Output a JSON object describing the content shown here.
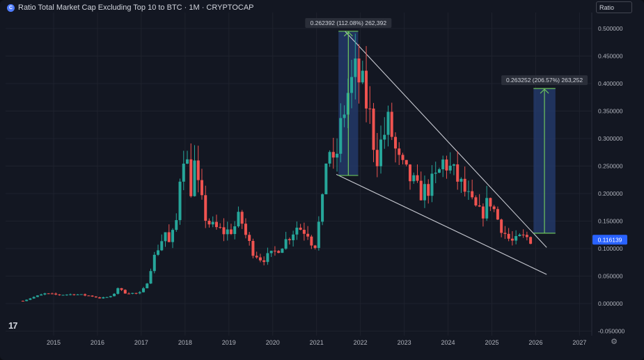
{
  "header": {
    "title": "Ratio Total Market Cap Excluding Top 10 to BTC · 1M · CRYPTOCAP",
    "icon": "cryptocap-icon"
  },
  "toolbar": {
    "ratio_label": "Ratio"
  },
  "logo": {
    "text": "17"
  },
  "settings": {
    "icon": "gear-icon",
    "glyph": "⚙"
  },
  "colors": {
    "up": "#26a69a",
    "down": "#ef5350",
    "grid": "#1e222d",
    "box": "#263e72",
    "arrow": "#6ec55d",
    "price": "#2962ff"
  },
  "chart_data": {
    "type": "candlestick",
    "title": "Ratio Total Market Cap Excluding Top 10 to BTC · 1M · CRYPTOCAP",
    "xlabel": "",
    "ylabel": "",
    "ylim": [
      -0.05,
      0.52
    ],
    "y_ticks": [
      0.5,
      0.45,
      0.4,
      0.35,
      0.3,
      0.25,
      0.2,
      0.15,
      0.1,
      0.05,
      0.0,
      -0.05
    ],
    "y_tick_labels": [
      "0.500000",
      "0.450000",
      "0.400000",
      "0.350000",
      "0.300000",
      "0.250000",
      "0.200000",
      "0.150000",
      "0.100000",
      "0.050000",
      "0.000000",
      "-0.050000"
    ],
    "x_ticks": [
      2015,
      2016,
      2017,
      2018,
      2019,
      2020,
      2021,
      2022,
      2023,
      2024,
      2025,
      2026,
      2027
    ],
    "x_tick_labels": [
      "2015",
      "2016",
      "2017",
      "2018",
      "2019",
      "2020",
      "2021",
      "2022",
      "2023",
      "2024",
      "2025",
      "2026",
      "2027"
    ],
    "grid": true,
    "last_price": {
      "value": 0.116139,
      "label": "0.116139"
    },
    "close_anchors": [
      [
        2014.3,
        0.005
      ],
      [
        2014.55,
        0.012
      ],
      [
        2014.8,
        0.018
      ],
      [
        2015.1,
        0.016
      ],
      [
        2015.5,
        0.017
      ],
      [
        2015.85,
        0.014
      ],
      [
        2016.05,
        0.01
      ],
      [
        2016.35,
        0.013
      ],
      [
        2016.45,
        0.03
      ],
      [
        2016.6,
        0.02
      ],
      [
        2016.95,
        0.018
      ],
      [
        2017.1,
        0.03
      ],
      [
        2017.25,
        0.075
      ],
      [
        2017.4,
        0.105
      ],
      [
        2017.55,
        0.13
      ],
      [
        2017.65,
        0.105
      ],
      [
        2017.8,
        0.15
      ],
      [
        2017.9,
        0.25
      ],
      [
        2018.0,
        0.29
      ],
      [
        2018.12,
        0.2
      ],
      [
        2018.2,
        0.26
      ],
      [
        2018.3,
        0.21
      ],
      [
        2018.45,
        0.16
      ],
      [
        2018.6,
        0.14
      ],
      [
        2018.9,
        0.13
      ],
      [
        2019.1,
        0.135
      ],
      [
        2019.25,
        0.16
      ],
      [
        2019.4,
        0.12
      ],
      [
        2019.55,
        0.095
      ],
      [
        2019.75,
        0.08
      ],
      [
        2020.0,
        0.09
      ],
      [
        2020.25,
        0.11
      ],
      [
        2020.55,
        0.14
      ],
      [
        2020.8,
        0.13
      ],
      [
        2020.95,
        0.1
      ],
      [
        2021.15,
        0.19
      ],
      [
        2021.25,
        0.3
      ],
      [
        2021.4,
        0.24
      ],
      [
        2021.55,
        0.32
      ],
      [
        2021.7,
        0.38
      ],
      [
        2021.9,
        0.42
      ],
      [
        2022.05,
        0.39
      ],
      [
        2022.25,
        0.33
      ],
      [
        2022.35,
        0.26
      ],
      [
        2022.5,
        0.3
      ],
      [
        2022.65,
        0.33
      ],
      [
        2022.85,
        0.26
      ],
      [
        2023.0,
        0.24
      ],
      [
        2023.2,
        0.22
      ],
      [
        2023.35,
        0.2
      ],
      [
        2023.55,
        0.21
      ],
      [
        2023.75,
        0.23
      ],
      [
        2023.9,
        0.26
      ],
      [
        2024.1,
        0.24
      ],
      [
        2024.3,
        0.215
      ],
      [
        2024.55,
        0.18
      ],
      [
        2024.75,
        0.16
      ],
      [
        2024.95,
        0.19
      ],
      [
        2025.15,
        0.15
      ],
      [
        2025.35,
        0.12
      ],
      [
        2025.5,
        0.11
      ],
      [
        2025.65,
        0.12
      ],
      [
        2025.8,
        0.12
      ],
      [
        2025.9,
        0.116
      ]
    ],
    "trendlines": [
      {
        "from": [
          2021.65,
          0.495
        ],
        "to": [
          2026.25,
          0.102
        ]
      },
      {
        "from": [
          2021.45,
          0.235
        ],
        "to": [
          2026.25,
          0.053
        ]
      }
    ],
    "annotations": [
      {
        "label": "0.262392 (112.08%) 262,392",
        "x0": 2021.5,
        "x1": 2021.95,
        "y_from": 0.233,
        "y_to": 0.495
      },
      {
        "label": "0.263252 (206.57%) 263,252",
        "x0": 2025.95,
        "x1": 2026.45,
        "y_from": 0.128,
        "y_to": 0.391
      }
    ]
  }
}
